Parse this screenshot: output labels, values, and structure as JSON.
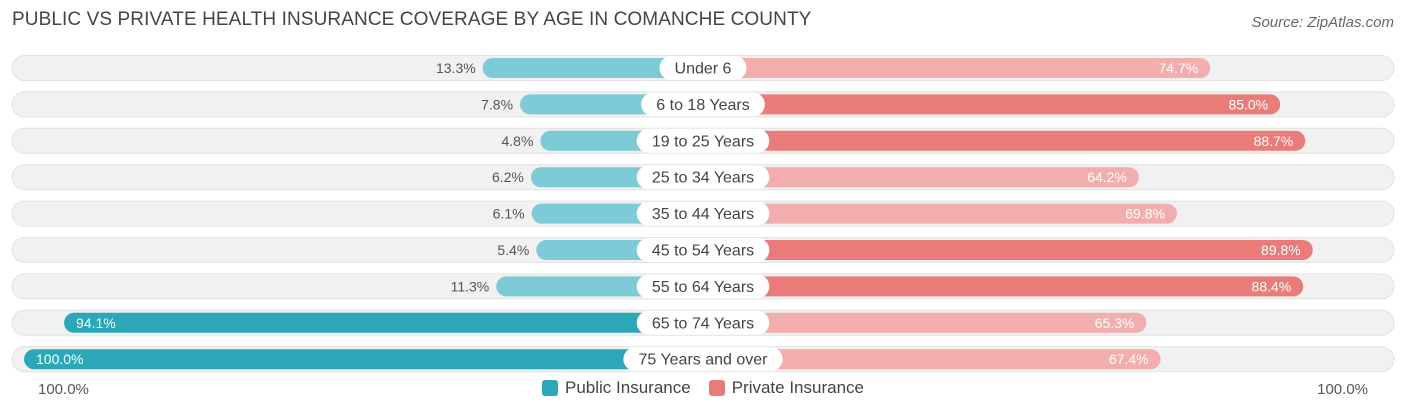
{
  "header": {
    "title": "PUBLIC VS PRIVATE HEALTH INSURANCE COVERAGE BY AGE IN COMANCHE COUNTY",
    "source": "Source: ZipAtlas.com"
  },
  "axis": {
    "left_label": "100.0%",
    "right_label": "100.0%"
  },
  "legend": {
    "public": "Public Insurance",
    "private": "Private Insurance"
  },
  "colors": {
    "public_strong": "#2ba7b8",
    "public_light": "#7ccbd6",
    "private_strong": "#e97c78",
    "private_light": "#f1aeac",
    "row_bg": "#f1f1f1"
  },
  "chart_data": {
    "type": "bar",
    "title": "PUBLIC VS PRIVATE HEALTH INSURANCE COVERAGE BY AGE IN COMANCHE COUNTY",
    "orientation": "horizontal-diverging",
    "xlim": [
      0,
      100
    ],
    "categories": [
      "Under 6",
      "6 to 18 Years",
      "19 to 25 Years",
      "25 to 34 Years",
      "35 to 44 Years",
      "45 to 54 Years",
      "55 to 64 Years",
      "65 to 74 Years",
      "75 Years and over"
    ],
    "series": [
      {
        "name": "Public Insurance",
        "values": [
          13.3,
          7.8,
          4.8,
          6.2,
          6.1,
          5.4,
          11.3,
          94.1,
          100.0
        ],
        "labels": [
          "13.3%",
          "7.8%",
          "4.8%",
          "6.2%",
          "6.1%",
          "5.4%",
          "11.3%",
          "94.1%",
          "100.0%"
        ]
      },
      {
        "name": "Private Insurance",
        "values": [
          74.7,
          85.0,
          88.7,
          64.2,
          69.8,
          89.8,
          88.4,
          65.3,
          67.4
        ],
        "labels": [
          "74.7%",
          "85.0%",
          "88.7%",
          "64.2%",
          "69.8%",
          "89.8%",
          "88.4%",
          "65.3%",
          "67.4%"
        ]
      }
    ]
  }
}
